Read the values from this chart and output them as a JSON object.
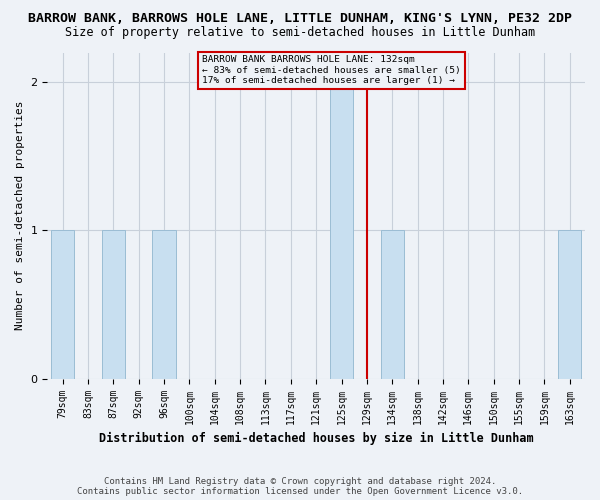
{
  "title": "BARROW BANK, BARROWS HOLE LANE, LITTLE DUNHAM, KING'S LYNN, PE32 2DP",
  "subtitle": "Size of property relative to semi-detached houses in Little Dunham",
  "xlabel": "Distribution of semi-detached houses by size in Little Dunham",
  "ylabel": "Number of semi-detached properties",
  "footer": "Contains HM Land Registry data © Crown copyright and database right 2024.\nContains public sector information licensed under the Open Government Licence v3.0.",
  "categories": [
    "79sqm",
    "83sqm",
    "87sqm",
    "92sqm",
    "96sqm",
    "100sqm",
    "104sqm",
    "108sqm",
    "113sqm",
    "117sqm",
    "121sqm",
    "125sqm",
    "129sqm",
    "134sqm",
    "138sqm",
    "142sqm",
    "146sqm",
    "150sqm",
    "155sqm",
    "159sqm",
    "163sqm"
  ],
  "values": [
    1,
    0,
    1,
    0,
    1,
    0,
    0,
    0,
    0,
    0,
    0,
    2,
    0,
    1,
    0,
    0,
    0,
    0,
    0,
    0,
    1
  ],
  "bar_color": "#c8dff0",
  "bar_edgecolor": "#9bbdd4",
  "red_line_index": 12,
  "red_line_color": "#cc0000",
  "ylim": [
    0,
    2.2
  ],
  "yticks": [
    0,
    1,
    2
  ],
  "annotation_text": "BARROW BANK BARROWS HOLE LANE: 132sqm\n← 83% of semi-detached houses are smaller (5)\n17% of semi-detached houses are larger (1) →",
  "background_color": "#eef2f7",
  "grid_color": "#c8d0da",
  "title_fontsize": 9.5,
  "subtitle_fontsize": 8.5,
  "ylabel_fontsize": 8,
  "xlabel_fontsize": 8.5,
  "tick_fontsize": 7,
  "footer_fontsize": 6.5
}
